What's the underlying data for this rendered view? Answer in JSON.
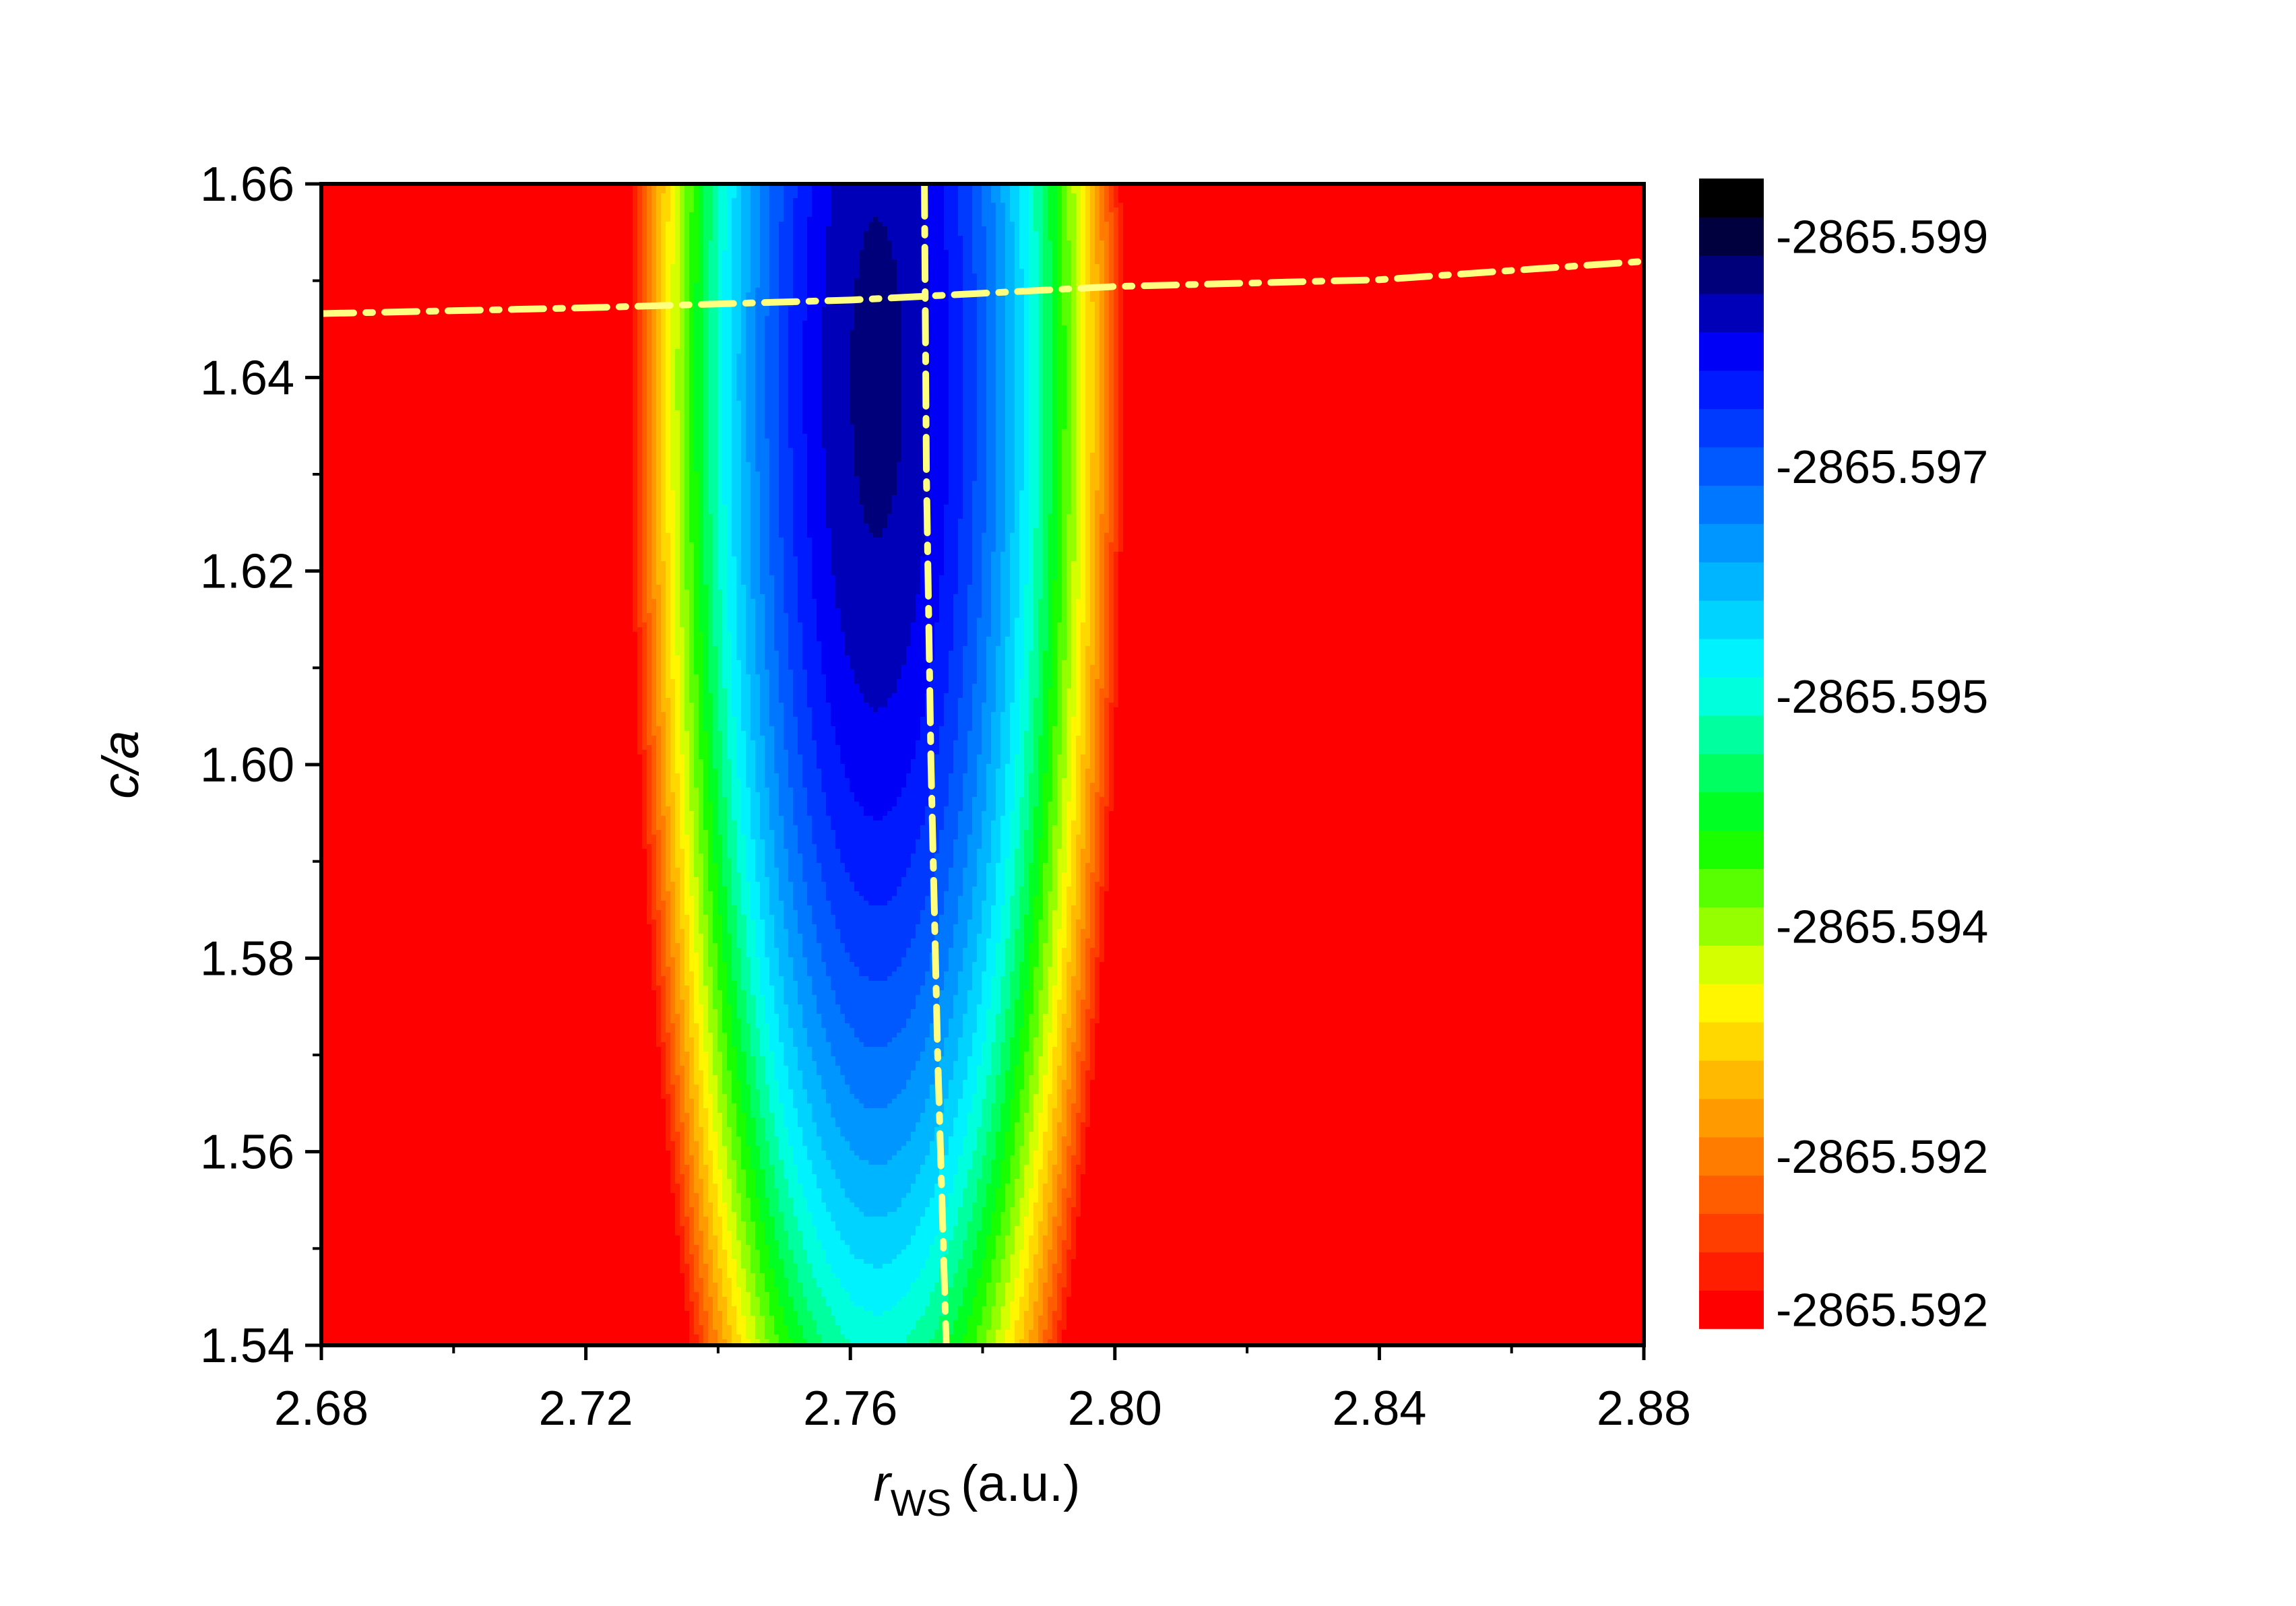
{
  "chart_data": {
    "type": "heatmap",
    "subtype": "filled-contour",
    "title": "",
    "xlabel": {
      "symbol": "r",
      "subscript": "WS",
      "unit": "(a.u.)"
    },
    "ylabel": {
      "text": "c/a"
    },
    "xlim": [
      2.68,
      2.88
    ],
    "ylim": [
      1.54,
      1.66
    ],
    "x_ticks": [
      2.68,
      2.72,
      2.76,
      2.8,
      2.84,
      2.88
    ],
    "x_tick_labels": [
      "2.68",
      "2.72",
      "2.76",
      "2.80",
      "2.84",
      "2.88"
    ],
    "x_minor_step": 0.02,
    "y_ticks": [
      1.54,
      1.56,
      1.58,
      1.6,
      1.62,
      1.64,
      1.66
    ],
    "y_tick_labels": [
      "1.54",
      "1.56",
      "1.58",
      "1.60",
      "1.62",
      "1.64",
      "1.66"
    ],
    "y_minor_step": 0.01,
    "colorscale": [
      "#ff0000",
      "#ff8000",
      "#ffff00",
      "#00ff00",
      "#00ffff",
      "#0080ff",
      "#0000ff",
      "#000000"
    ],
    "colorbar": {
      "n_levels": 30,
      "tick_labels": [
        "-2865.599",
        "-2865.597",
        "-2865.595",
        "-2865.594",
        "-2865.592",
        "-2865.592"
      ],
      "tick_level_positions": [
        28.5,
        22.5,
        16.5,
        10.5,
        4.5,
        0.5
      ]
    },
    "grid": false,
    "legend": "none",
    "energy_minimum": {
      "x": 2.764,
      "c_over_a": 1.64
    },
    "annotations": [
      {
        "name": "min-c-over-a-curve",
        "style": "dash-dot",
        "color": "#ffff80",
        "x": [
          2.68,
          2.72,
          2.76,
          2.8,
          2.84,
          2.88
        ],
        "y": [
          1.6466,
          1.6472,
          1.648,
          1.6494,
          1.6501,
          1.652
        ]
      },
      {
        "name": "min-rws-curve",
        "style": "dash-dot",
        "color": "#ffff80",
        "x": [
          2.7712,
          2.7715,
          2.7722,
          2.7732,
          2.7745
        ],
        "y": [
          1.66,
          1.63,
          1.6,
          1.57,
          1.54
        ]
      }
    ]
  }
}
